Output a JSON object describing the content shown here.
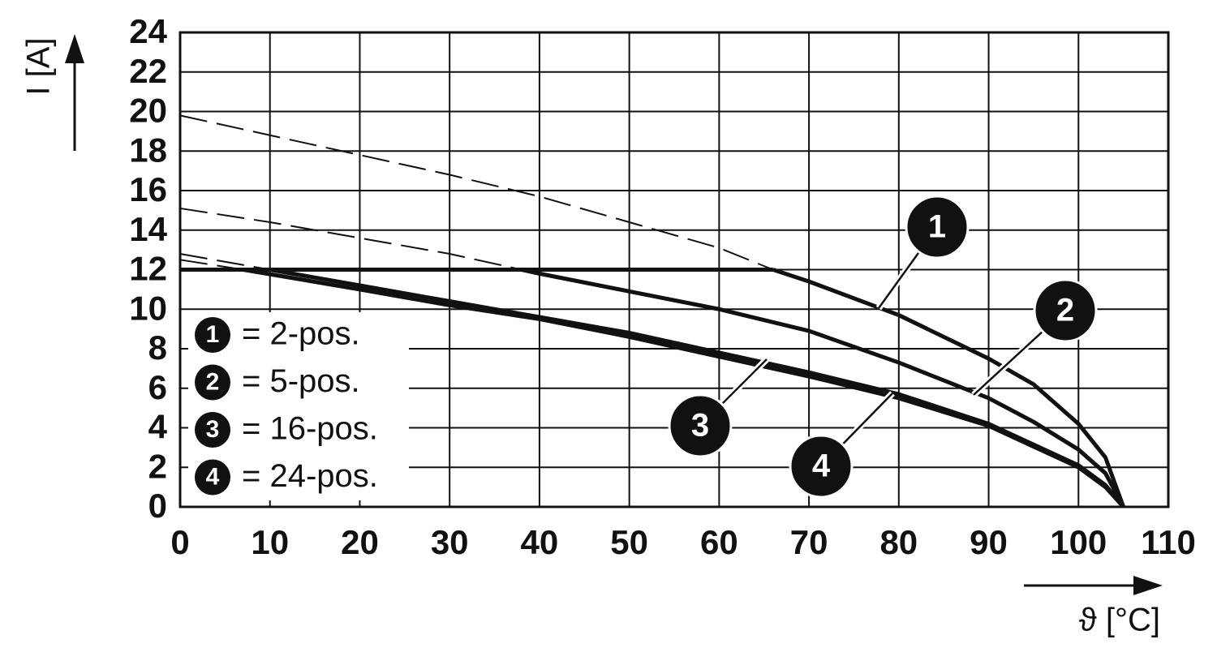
{
  "chart_data": {
    "type": "line",
    "x_label": "ϑ [°C]",
    "y_label": "I [A]",
    "xlim": [
      0,
      110
    ],
    "xticks": [
      0,
      10,
      20,
      30,
      40,
      50,
      60,
      70,
      80,
      90,
      100,
      110
    ],
    "ylim": [
      0,
      24
    ],
    "yticks": [
      0,
      2,
      4,
      6,
      8,
      10,
      12,
      14,
      16,
      18,
      20,
      22,
      24
    ],
    "grid": true,
    "color": "#111111",
    "legend": [
      {
        "marker": "1",
        "label": "= 2-pos."
      },
      {
        "marker": "2",
        "label": "= 5-pos."
      },
      {
        "marker": "3",
        "label": "= 16-pos."
      },
      {
        "marker": "4",
        "label": "= 24-pos."
      }
    ],
    "series": [
      {
        "style": "dashed",
        "x": [
          0,
          10,
          20,
          30,
          40,
          50,
          60,
          66
        ],
        "values": [
          19.8,
          18.8,
          17.8,
          16.8,
          15.7,
          14.4,
          13.1,
          12
        ]
      },
      {
        "style": "solid",
        "x": [
          0,
          66
        ],
        "values": [
          12,
          12
        ]
      },
      {
        "style": "solid",
        "x": [
          66,
          70,
          80,
          90,
          95,
          100,
          103,
          105
        ],
        "values": [
          12,
          11.4,
          9.7,
          7.5,
          6.2,
          4.2,
          2.5,
          0
        ]
      },
      {
        "style": "dashed",
        "x": [
          0,
          10,
          20,
          30,
          38
        ],
        "values": [
          15.1,
          14.4,
          13.6,
          12.8,
          12
        ]
      },
      {
        "style": "solid",
        "x": [
          38,
          40,
          50,
          60,
          70,
          80,
          90,
          95,
          100,
          103,
          105
        ],
        "values": [
          12,
          11.8,
          10.9,
          10,
          8.9,
          7.3,
          5.5,
          4.3,
          2.9,
          1.7,
          0
        ]
      },
      {
        "style": "dashed",
        "x": [
          0,
          10
        ],
        "values": [
          12.8,
          12
        ]
      },
      {
        "style": "solid",
        "x": [
          10,
          20,
          30,
          40,
          50,
          60,
          70,
          80,
          90,
          100,
          103,
          105
        ],
        "values": [
          12,
          11.2,
          10.4,
          9.6,
          8.8,
          7.8,
          6.8,
          5.7,
          4.2,
          2.1,
          1.1,
          0
        ]
      },
      {
        "style": "dashed",
        "x": [
          0,
          7
        ],
        "values": [
          12.5,
          12
        ]
      },
      {
        "style": "solid",
        "x": [
          7,
          20,
          30,
          40,
          50,
          60,
          70,
          80,
          90,
          100,
          103,
          105
        ],
        "values": [
          12,
          11,
          10.2,
          9.5,
          8.6,
          7.6,
          6.6,
          5.5,
          4.1,
          2,
          1,
          0
        ]
      }
    ]
  }
}
